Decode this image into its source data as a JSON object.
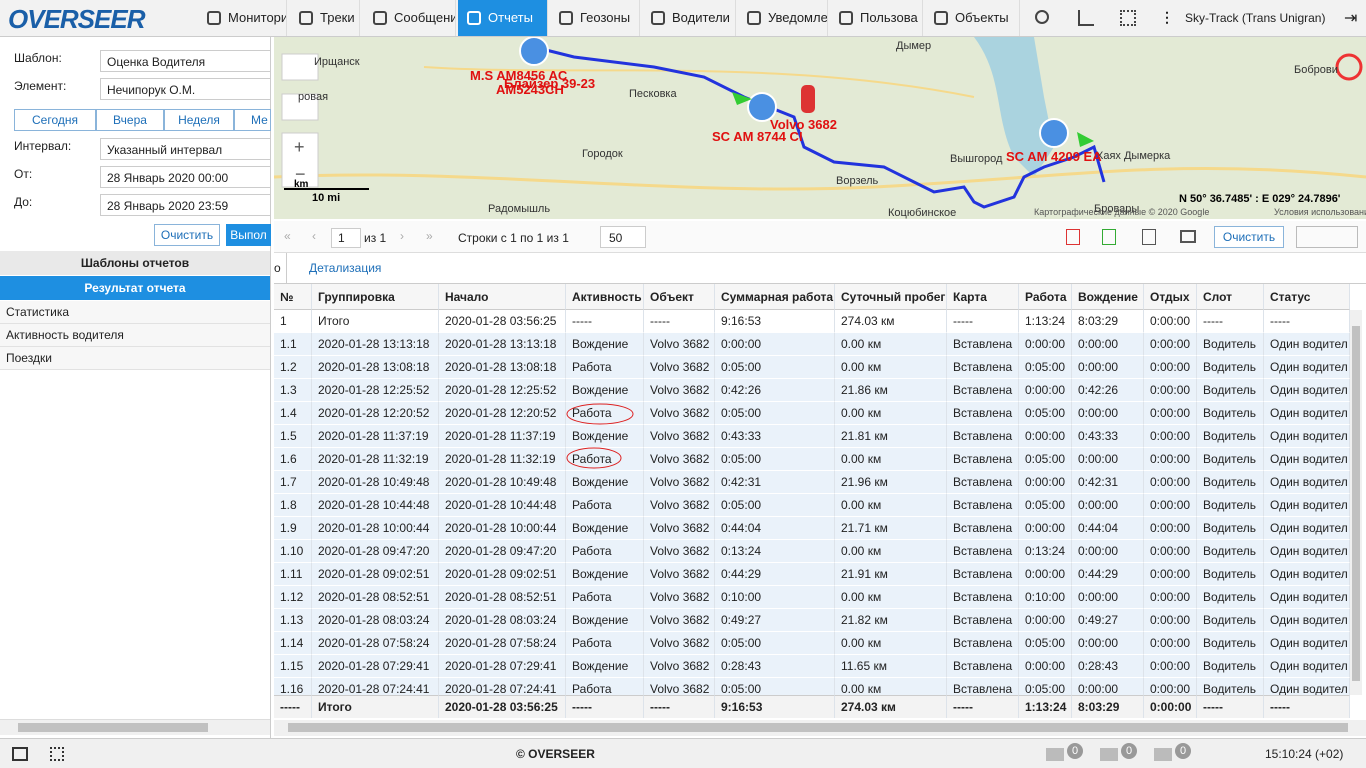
{
  "header": {
    "logo": "OVERSEER",
    "nav": [
      "Монитори",
      "Треки",
      "Сообщени",
      "Отчеты",
      "Геозоны",
      "Водители",
      "Уведомле",
      "Пользова",
      "Объекты"
    ],
    "account": "Sky-Track (Trans Unigran)"
  },
  "left": {
    "template_label": "Шаблон:",
    "template": "Оценка Водителя",
    "element_label": "Элемент:",
    "element": "Нечипорук О.М.",
    "periods": [
      "Сегодня",
      "Вчера",
      "Неделя",
      "Ме"
    ],
    "interval_label": "Интервал:",
    "interval": "Указанный интервал",
    "from_label": "От:",
    "from": "28 Январь 2020 00:00",
    "to_label": "До:",
    "to": "28 Январь 2020 23:59",
    "clear": "Очистить",
    "run": "Выпол",
    "templates_title": "Шаблоны отчетов",
    "result_title": "Результат отчета",
    "results": [
      "Статистика",
      "Активность водителя",
      "Поездки"
    ]
  },
  "map": {
    "places": [
      "Ирщанск",
      "Дымер",
      "Песковка",
      "Городок",
      "Ворзель",
      "Вышгород",
      "Бровары",
      "Радомышль",
      "Коцюбинское",
      "Боброви",
      "Хаях Дымерка",
      "ровая"
    ],
    "units": [
      "M.S AM8456 AC",
      "Блайзер 39-23",
      "AM5243CH",
      "SC AM 8744 CI",
      "Volvo 3682",
      "SC AM 4209 EA"
    ],
    "scale": "10 mi",
    "scale_km": "km",
    "coords": "N 50° 36.7485' : E 029° 24.7896'",
    "copyright": "Картографические данные © 2020 Google",
    "terms": "Условия использования"
  },
  "toolbar": {
    "page": "1",
    "of": "из 1",
    "rows": "Строки с 1 по 1 из 1",
    "per_page": "50",
    "clear": "Очистить"
  },
  "tabs": {
    "detail": "Детализация",
    "prev": "о"
  },
  "table": {
    "headers": [
      "№",
      "Группировка",
      "Начало",
      "Активность",
      "Объект",
      "Суммарная работа",
      "Суточный пробег",
      "Карта",
      "Работа",
      "Вождение",
      "Отдых",
      "Слот",
      "Статус"
    ],
    "rows": [
      [
        "1",
        "Итого",
        "2020-01-28 03:56:25",
        "-----",
        "-----",
        "9:16:53",
        "274.03 км",
        "-----",
        "1:13:24",
        "8:03:29",
        "0:00:00",
        "-----",
        "-----"
      ],
      [
        "1.1",
        "2020-01-28 13:13:18",
        "2020-01-28 13:13:18",
        "Вождение",
        "Volvo 3682",
        "0:00:00",
        "0.00 км",
        "Вставлена",
        "0:00:00",
        "0:00:00",
        "0:00:00",
        "Водитель",
        "Один водител"
      ],
      [
        "1.2",
        "2020-01-28 13:08:18",
        "2020-01-28 13:08:18",
        "Работа",
        "Volvo 3682",
        "0:05:00",
        "0.00 км",
        "Вставлена",
        "0:05:00",
        "0:00:00",
        "0:00:00",
        "Водитель",
        "Один водител"
      ],
      [
        "1.3",
        "2020-01-28 12:25:52",
        "2020-01-28 12:25:52",
        "Вождение",
        "Volvo 3682",
        "0:42:26",
        "21.86 км",
        "Вставлена",
        "0:00:00",
        "0:42:26",
        "0:00:00",
        "Водитель",
        "Один водител"
      ],
      [
        "1.4",
        "2020-01-28 12:20:52",
        "2020-01-28 12:20:52",
        "Работа",
        "Volvo 3682",
        "0:05:00",
        "0.00 км",
        "Вставлена",
        "0:05:00",
        "0:00:00",
        "0:00:00",
        "Водитель",
        "Один водител"
      ],
      [
        "1.5",
        "2020-01-28 11:37:19",
        "2020-01-28 11:37:19",
        "Вождение",
        "Volvo 3682",
        "0:43:33",
        "21.81 км",
        "Вставлена",
        "0:00:00",
        "0:43:33",
        "0:00:00",
        "Водитель",
        "Один водител"
      ],
      [
        "1.6",
        "2020-01-28 11:32:19",
        "2020-01-28 11:32:19",
        "Работа",
        "Volvo 3682",
        "0:05:00",
        "0.00 км",
        "Вставлена",
        "0:05:00",
        "0:00:00",
        "0:00:00",
        "Водитель",
        "Один водител"
      ],
      [
        "1.7",
        "2020-01-28 10:49:48",
        "2020-01-28 10:49:48",
        "Вождение",
        "Volvo 3682",
        "0:42:31",
        "21.96 км",
        "Вставлена",
        "0:00:00",
        "0:42:31",
        "0:00:00",
        "Водитель",
        "Один водител"
      ],
      [
        "1.8",
        "2020-01-28 10:44:48",
        "2020-01-28 10:44:48",
        "Работа",
        "Volvo 3682",
        "0:05:00",
        "0.00 км",
        "Вставлена",
        "0:05:00",
        "0:00:00",
        "0:00:00",
        "Водитель",
        "Один водител"
      ],
      [
        "1.9",
        "2020-01-28 10:00:44",
        "2020-01-28 10:00:44",
        "Вождение",
        "Volvo 3682",
        "0:44:04",
        "21.71 км",
        "Вставлена",
        "0:00:00",
        "0:44:04",
        "0:00:00",
        "Водитель",
        "Один водител"
      ],
      [
        "1.10",
        "2020-01-28 09:47:20",
        "2020-01-28 09:47:20",
        "Работа",
        "Volvo 3682",
        "0:13:24",
        "0.00 км",
        "Вставлена",
        "0:13:24",
        "0:00:00",
        "0:00:00",
        "Водитель",
        "Один водител"
      ],
      [
        "1.11",
        "2020-01-28 09:02:51",
        "2020-01-28 09:02:51",
        "Вождение",
        "Volvo 3682",
        "0:44:29",
        "21.91 км",
        "Вставлена",
        "0:00:00",
        "0:44:29",
        "0:00:00",
        "Водитель",
        "Один водител"
      ],
      [
        "1.12",
        "2020-01-28 08:52:51",
        "2020-01-28 08:52:51",
        "Работа",
        "Volvo 3682",
        "0:10:00",
        "0.00 км",
        "Вставлена",
        "0:10:00",
        "0:00:00",
        "0:00:00",
        "Водитель",
        "Один водител"
      ],
      [
        "1.13",
        "2020-01-28 08:03:24",
        "2020-01-28 08:03:24",
        "Вождение",
        "Volvo 3682",
        "0:49:27",
        "21.82 км",
        "Вставлена",
        "0:00:00",
        "0:49:27",
        "0:00:00",
        "Водитель",
        "Один водител"
      ],
      [
        "1.14",
        "2020-01-28 07:58:24",
        "2020-01-28 07:58:24",
        "Работа",
        "Volvo 3682",
        "0:05:00",
        "0.00 км",
        "Вставлена",
        "0:05:00",
        "0:00:00",
        "0:00:00",
        "Водитель",
        "Один водител"
      ],
      [
        "1.15",
        "2020-01-28 07:29:41",
        "2020-01-28 07:29:41",
        "Вождение",
        "Volvo 3682",
        "0:28:43",
        "11.65 км",
        "Вставлена",
        "0:00:00",
        "0:28:43",
        "0:00:00",
        "Водитель",
        "Один водител"
      ],
      [
        "1.16",
        "2020-01-28 07:24:41",
        "2020-01-28 07:24:41",
        "Работа",
        "Volvo 3682",
        "0:05:00",
        "0.00 км",
        "Вставлена",
        "0:05:00",
        "0:00:00",
        "0:00:00",
        "Водитель",
        "Один водител"
      ]
    ],
    "footer": [
      "-----",
      "Итого",
      "2020-01-28 03:56:25",
      "-----",
      "-----",
      "9:16:53",
      "274.03 км",
      "-----",
      "1:13:24",
      "8:03:29",
      "0:00:00",
      "-----",
      "-----"
    ]
  },
  "footer": {
    "copyright": "© OVERSEER",
    "counts": [
      "0",
      "0",
      "0"
    ],
    "time": "15:10:24 (+02)"
  }
}
